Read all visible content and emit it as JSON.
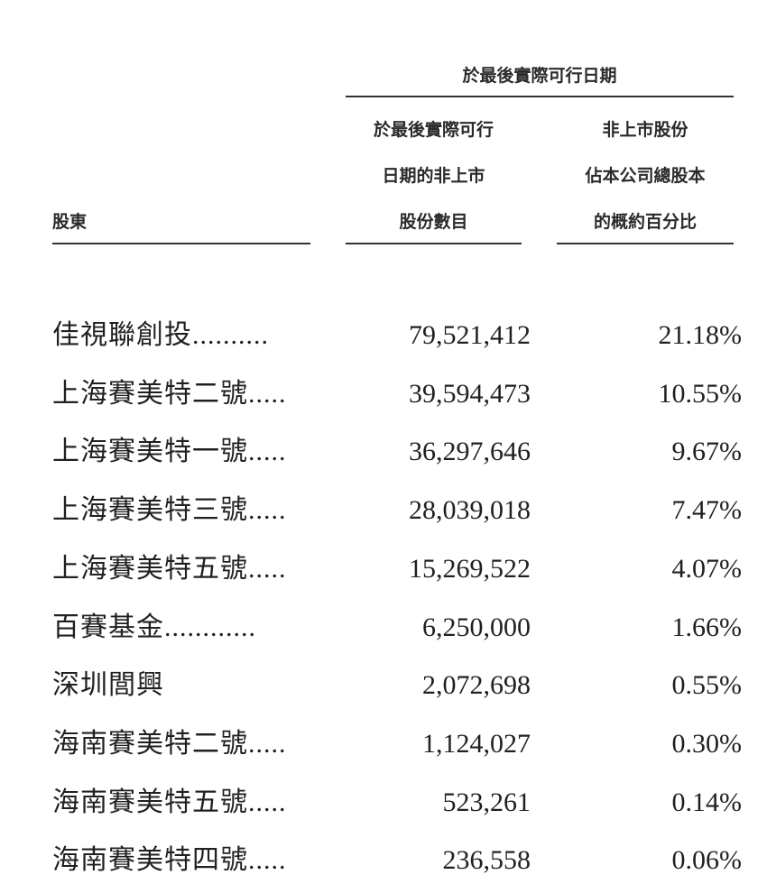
{
  "header": {
    "group_title": "於最後實際可行日期",
    "col_shareholder": "股東",
    "col_shares": [
      "於最後實際可行",
      "日期的非上市",
      "股份數目"
    ],
    "col_percent": [
      "非上市股份",
      "佔本公司總股本",
      "的概約百分比"
    ]
  },
  "rows": [
    {
      "name": "佳視聯創投..........",
      "shares": "79,521,412",
      "percent": "21.18%"
    },
    {
      "name": "上海賽美特二號.....",
      "shares": "39,594,473",
      "percent": "10.55%"
    },
    {
      "name": "上海賽美特一號.....",
      "shares": "36,297,646",
      "percent": "9.67%"
    },
    {
      "name": "上海賽美特三號.....",
      "shares": "28,039,018",
      "percent": "7.47%"
    },
    {
      "name": "上海賽美特五號.....",
      "shares": "15,269,522",
      "percent": "4.07%"
    },
    {
      "name": "百賽基金............",
      "shares": "6,250,000",
      "percent": "1.66%"
    },
    {
      "name": "深圳閭興",
      "shares": "2,072,698",
      "percent": "0.55%"
    },
    {
      "name": "海南賽美特二號.....",
      "shares": "1,124,027",
      "percent": "0.30%"
    },
    {
      "name": "海南賽美特五號.....",
      "shares": "523,261",
      "percent": "0.14%"
    },
    {
      "name": "海南賽美特四號.....",
      "shares": "236,558",
      "percent": "0.06%"
    }
  ]
}
